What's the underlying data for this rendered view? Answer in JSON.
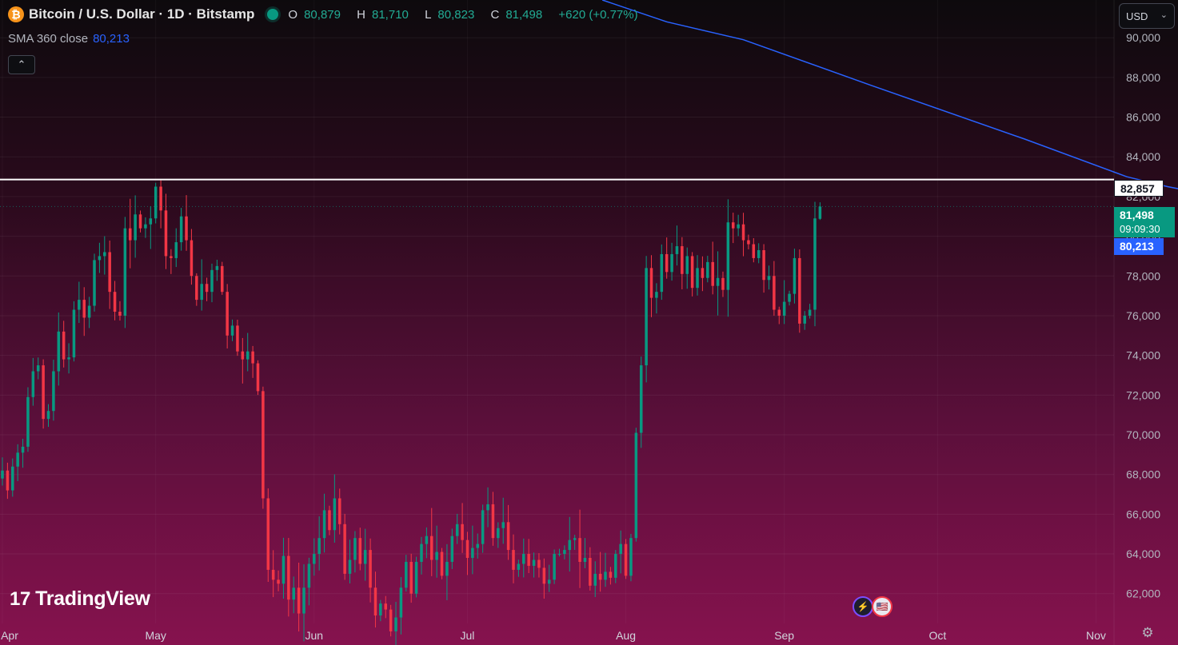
{
  "header": {
    "symbol_title": "Bitcoin / U.S. Dollar · 1D · Bitstamp",
    "coin_glyph": "₿",
    "open_key": "O",
    "open": "80,879",
    "high_key": "H",
    "high": "81,710",
    "low_key": "L",
    "low": "80,823",
    "close_key": "C",
    "close": "81,498",
    "change": "+620 (+0.77%)",
    "up_color": "#22ab94"
  },
  "indicator": {
    "label": "SMA 360 close",
    "value": "80,213",
    "color": "#2962ff"
  },
  "controls": {
    "collapse_icon": "⌃",
    "currency": "USD",
    "currency_chevron": "⌄",
    "settings_icon": "⚙"
  },
  "branding": {
    "logo_mark": "17",
    "logo_text": "TradingView"
  },
  "events": {
    "flash_icon": "⚡",
    "flag_icon": "🇺🇸"
  },
  "price_labels": {
    "level": "82,857",
    "last": "81,498",
    "countdown": "09:09:30",
    "sma": "80,213"
  },
  "chart_data": {
    "type": "candlestick",
    "title": "Bitcoin / U.S. Dollar · 1D · Bitstamp",
    "xlabel": "",
    "ylabel": "",
    "ylim": [
      60500,
      91900
    ],
    "y_ticks": [
      62000,
      64000,
      66000,
      68000,
      70000,
      72000,
      74000,
      76000,
      78000,
      80000,
      82000,
      84000,
      86000,
      88000,
      90000
    ],
    "y_tick_labels": [
      "62,000",
      "64,000",
      "66,000",
      "68,000",
      "70,000",
      "72,000",
      "74,000",
      "76,000",
      "78,000",
      "80,000",
      "82,000",
      "84,000",
      "86,000",
      "88,000",
      "90,000"
    ],
    "x_ticks": [
      {
        "label": "Apr",
        "day": 0
      },
      {
        "label": "May",
        "day": 30
      },
      {
        "label": "Jun",
        "day": 61
      },
      {
        "label": "Jul",
        "day": 91
      },
      {
        "label": "Aug",
        "day": 122
      },
      {
        "label": "Sep",
        "day": 153
      },
      {
        "label": "Oct",
        "day": 183
      },
      {
        "label": "Nov",
        "day": 214
      }
    ],
    "x_range_days": [
      0,
      218
    ],
    "up_color": "#089981",
    "down_color": "#f23645",
    "horizontal_level": 82857,
    "last_price": 81498,
    "series": [
      {
        "name": "BTCUSD",
        "closes": [
          68200,
          67200,
          68400,
          69100,
          69400,
          71900,
          73200,
          73500,
          70800,
          71200,
          73200,
          75200,
          73800,
          73900,
          76300,
          76800,
          75900,
          76500,
          78800,
          79000,
          79200,
          77200,
          76200,
          76000,
          80400,
          79800,
          81100,
          80400,
          80600,
          80900,
          82500,
          81300,
          79000,
          78900,
          79700,
          81000,
          79800,
          78000,
          76800,
          77600,
          77200,
          78300,
          78500,
          77200,
          75000,
          75500,
          74200,
          73800,
          74200,
          73600,
          72200,
          66800,
          63200,
          62700,
          62500,
          63900,
          61700,
          62300,
          61000,
          62300,
          63500,
          64000,
          64800,
          66200,
          65200,
          66800,
          65500,
          63000,
          63700,
          64800,
          63500,
          64200,
          62300,
          60900,
          61500,
          61200,
          60100,
          60800,
          62300,
          63600,
          62000,
          63600,
          64500,
          64900,
          63700,
          64100,
          62900,
          63600,
          64900,
          65500,
          64700,
          63800,
          64300,
          64500,
          66200,
          66500,
          64800,
          65300,
          65600,
          64200,
          63200,
          63500,
          64000,
          63400,
          63700,
          63300,
          62500,
          62700,
          64000,
          64000,
          64200,
          64700,
          64800,
          63600,
          63800,
          62400,
          63000,
          62700,
          63100,
          62800,
          64000,
          64500,
          62900,
          64800,
          70100,
          73500,
          78400,
          76900,
          77200,
          79100,
          78200,
          79100,
          79500,
          78100,
          79000,
          77400,
          78400,
          77900,
          78700,
          77500,
          77900,
          77300,
          80700,
          80400,
          80600,
          79800,
          79600,
          78900,
          79300,
          77800,
          78000,
          76300,
          76000,
          76700,
          77100,
          78900,
          75600,
          76000,
          76300,
          80900,
          81498
        ]
      },
      {
        "name": "SMA 360 close",
        "points": [
          [
            117.4,
            91900
          ],
          [
            130,
            90800
          ],
          [
            145,
            89900
          ],
          [
            170,
            87600
          ],
          [
            200,
            84900
          ],
          [
            220,
            83000
          ],
          [
            228,
            82500
          ],
          [
            240,
            81900
          ],
          [
            248,
            81400
          ],
          [
            258,
            80900
          ],
          [
            265,
            80213
          ]
        ]
      }
    ],
    "grid": true,
    "legend": "top-left"
  }
}
